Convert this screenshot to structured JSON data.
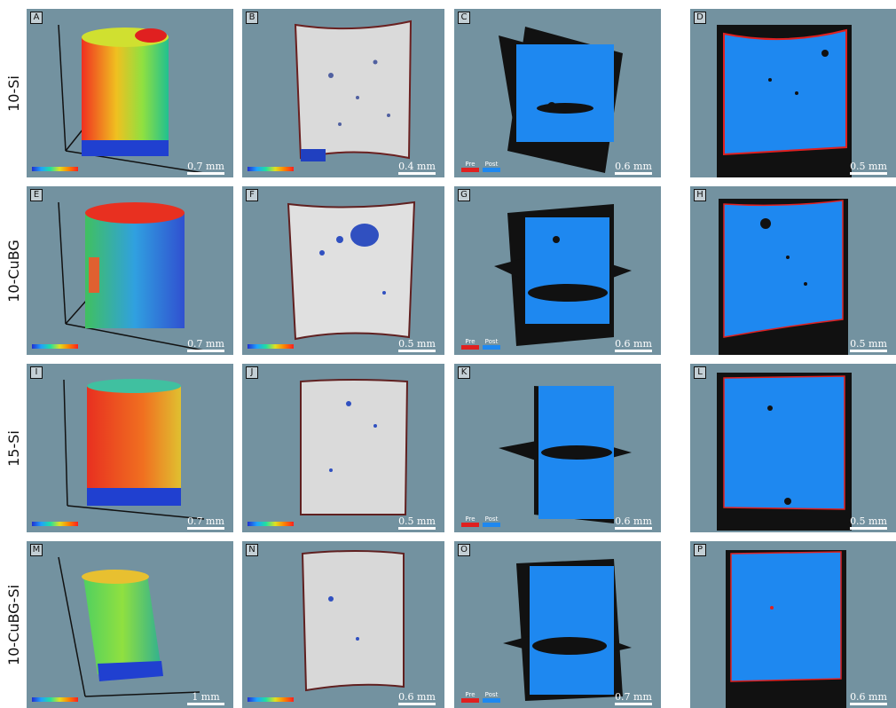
{
  "rows": [
    {
      "label": "10-Si"
    },
    {
      "label": "10-CuBG"
    },
    {
      "label": "15-Si"
    },
    {
      "label": "10-CuBG-Si"
    }
  ],
  "panels": [
    {
      "letter": "A",
      "scale": "0.7 mm"
    },
    {
      "letter": "B",
      "scale": "0.4 mm"
    },
    {
      "letter": "C",
      "scale": "0.6 mm"
    },
    {
      "letter": "D",
      "scale": "0.5 mm"
    },
    {
      "letter": "E",
      "scale": "0.7 mm"
    },
    {
      "letter": "F",
      "scale": "0.5 mm"
    },
    {
      "letter": "G",
      "scale": "0.6 mm"
    },
    {
      "letter": "H",
      "scale": "0.5 mm"
    },
    {
      "letter": "I",
      "scale": "0.7 mm"
    },
    {
      "letter": "J",
      "scale": "0.5 mm"
    },
    {
      "letter": "K",
      "scale": "0.6 mm"
    },
    {
      "letter": "L",
      "scale": "0.5 mm"
    },
    {
      "letter": "M",
      "scale": "1 mm"
    },
    {
      "letter": "N",
      "scale": "0.6 mm"
    },
    {
      "letter": "O",
      "scale": "0.7 mm"
    },
    {
      "letter": "P",
      "scale": "0.6 mm"
    }
  ],
  "legend": {
    "pre": "Pre",
    "post": "Post"
  },
  "colors": {
    "background": "#7392a0",
    "pre": "#e02020",
    "post": "#1e88f0",
    "scaffold": "#dadada"
  }
}
